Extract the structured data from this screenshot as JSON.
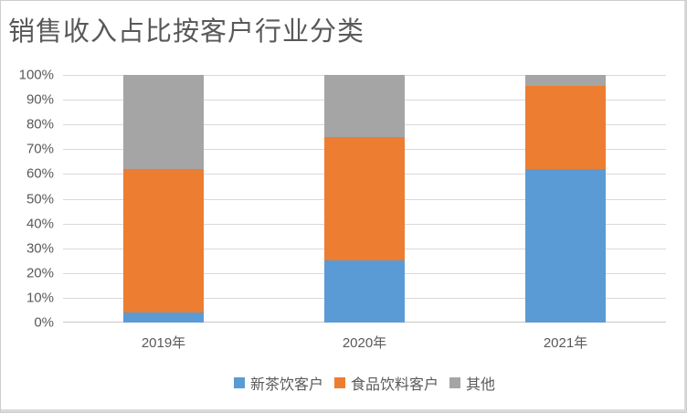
{
  "chart_data": {
    "type": "bar",
    "stacked": true,
    "percent_stacked": true,
    "title": "销售收入占比按客户行业分类",
    "categories": [
      "2019年",
      "2020年",
      "2021年"
    ],
    "series": [
      {
        "name": "新茶饮客户",
        "color": "#5B9BD5",
        "values": [
          4,
          25,
          62
        ]
      },
      {
        "name": "食品饮料客户",
        "color": "#ED7D31",
        "values": [
          58,
          50,
          33.5
        ]
      },
      {
        "name": "其他",
        "color": "#A5A5A5",
        "values": [
          38,
          25,
          4.5
        ]
      }
    ],
    "yticks": [
      "0%",
      "10%",
      "20%",
      "30%",
      "40%",
      "50%",
      "60%",
      "70%",
      "80%",
      "90%",
      "100%"
    ],
    "ylim": [
      0,
      100
    ],
    "grid": true,
    "legend_position": "bottom",
    "colors": {
      "gridline": "#D9D9D9",
      "axis_line": "#C6C6C6",
      "text": "#595959",
      "title_text": "#595959"
    }
  }
}
